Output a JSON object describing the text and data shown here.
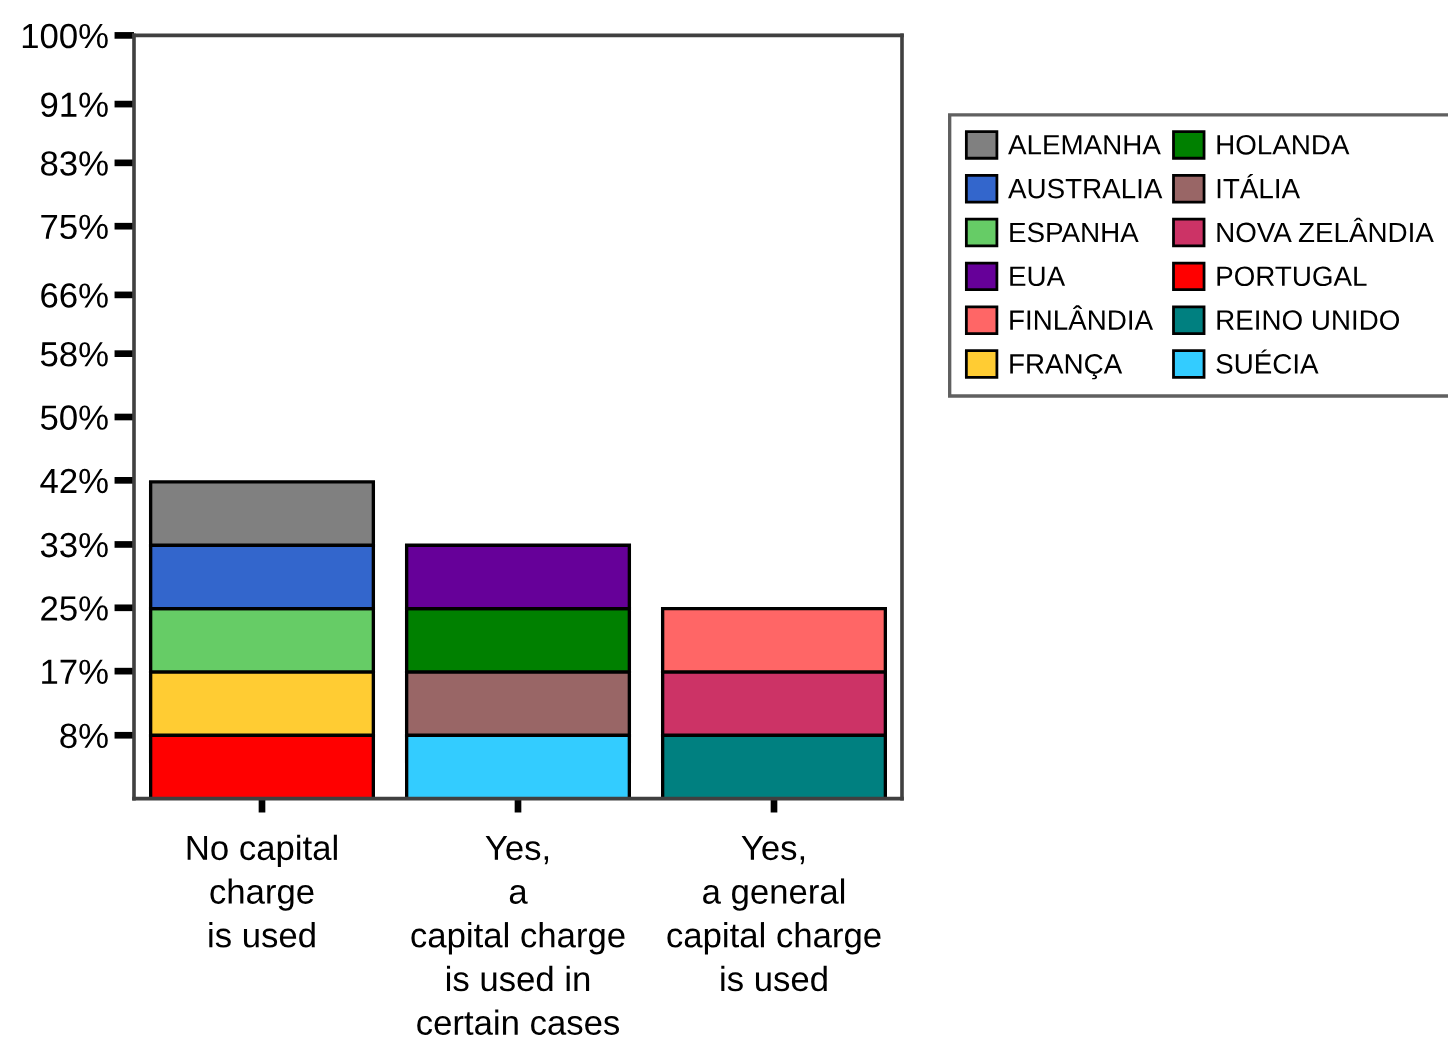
{
  "chart_data": {
    "type": "bar",
    "stacked": true,
    "categories": [
      "No capital\ncharge\nis used",
      "Yes,\na\ncapital charge\nis used in\ncertain cases",
      "Yes,\na general\ncapital charge\nis used"
    ],
    "series": [
      {
        "name": "SUÉCIA",
        "color": "#33ccff",
        "values": [
          null,
          8.3,
          null
        ]
      },
      {
        "name": "REINO UNIDO",
        "color": "#008080",
        "values": [
          null,
          null,
          8.3
        ]
      },
      {
        "name": "PORTUGAL",
        "color": "#ff0000",
        "values": [
          8.3,
          null,
          null
        ]
      },
      {
        "name": "NOVA ZELÂNDIA",
        "color": "#cc3366",
        "values": [
          null,
          null,
          8.3
        ]
      },
      {
        "name": "ITÁLIA",
        "color": "#996666",
        "values": [
          null,
          8.3,
          null
        ]
      },
      {
        "name": "HOLANDA",
        "color": "#008000",
        "values": [
          null,
          8.3,
          null
        ]
      },
      {
        "name": "FRANÇA",
        "color": "#ffcc33",
        "values": [
          8.3,
          null,
          null
        ]
      },
      {
        "name": "FINLÂNDIA",
        "color": "#ff6666",
        "values": [
          null,
          null,
          8.3
        ]
      },
      {
        "name": "EUA",
        "color": "#660099",
        "values": [
          null,
          8.3,
          null
        ]
      },
      {
        "name": "ESPANHA",
        "color": "#66cc66",
        "values": [
          8.3,
          null,
          null
        ]
      },
      {
        "name": "AUSTRALIA",
        "color": "#3366cc",
        "values": [
          8.3,
          null,
          null
        ]
      },
      {
        "name": "ALEMANHA",
        "color": "#808080",
        "values": [
          8.3,
          null,
          null
        ]
      }
    ],
    "ylim": [
      0,
      100
    ],
    "yticks": [
      {
        "value": 8.3,
        "label": "8%"
      },
      {
        "value": 16.7,
        "label": "17%"
      },
      {
        "value": 25,
        "label": "25%"
      },
      {
        "value": 33.3,
        "label": "33%"
      },
      {
        "value": 41.7,
        "label": "42%"
      },
      {
        "value": 50,
        "label": "50%"
      },
      {
        "value": 58.3,
        "label": "58%"
      },
      {
        "value": 66,
        "label": "66%"
      },
      {
        "value": 75,
        "label": "75%"
      },
      {
        "value": 83.3,
        "label": "83%"
      },
      {
        "value": 91,
        "label": "91%"
      },
      {
        "value": 100,
        "label": "100%"
      }
    ],
    "grid": false,
    "legend": "top right"
  }
}
